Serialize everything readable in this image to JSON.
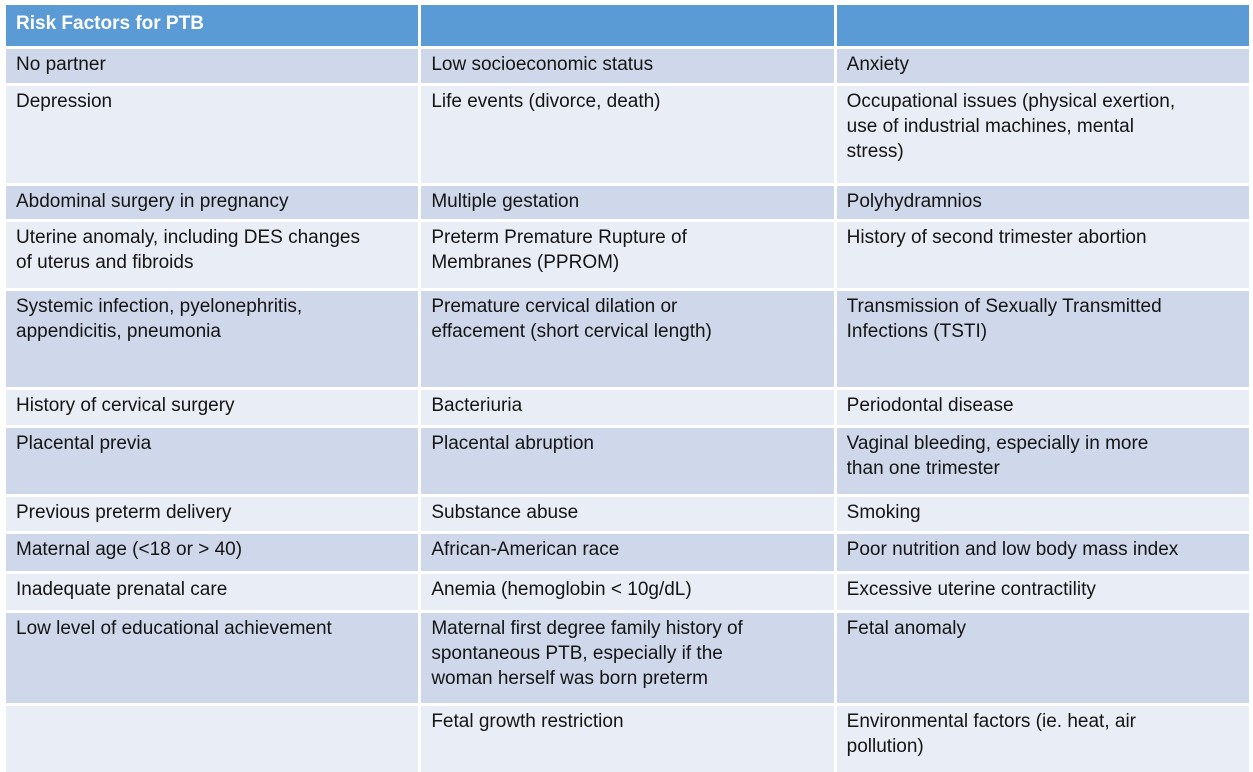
{
  "colors": {
    "header_bg": "#5B9BD5",
    "header_text": "#FFFFFF",
    "band_dark": "#CFD8EA",
    "band_light": "#E9EDF6",
    "border": "#FFFFFF",
    "body_text": "#141414"
  },
  "table": {
    "title": "Risk Factors for PTB",
    "header": [
      "Risk Factors for PTB",
      "",
      ""
    ],
    "rows": [
      [
        "No partner",
        "Low socioeconomic status",
        "Anxiety"
      ],
      [
        "Depression",
        "Life events (divorce, death)",
        "Occupational issues (physical exertion,\nuse of industrial machines, mental\nstress)"
      ],
      [
        "Abdominal surgery in pregnancy",
        "Multiple gestation",
        "Polyhydramnios"
      ],
      [
        "Uterine anomaly, including DES changes\nof uterus and fibroids",
        "Preterm Premature Rupture of\nMembranes (PPROM)",
        "History of second trimester abortion"
      ],
      [
        "Systemic infection, pyelonephritis,\nappendicitis, pneumonia",
        "Premature cervical dilation or\neffacement (short cervical length)",
        "Transmission of Sexually Transmitted\nInfections (TSTI)"
      ],
      [
        "History of cervical surgery",
        "Bacteriuria",
        "Periodontal disease"
      ],
      [
        "Placental previa",
        "Placental abruption",
        "Vaginal bleeding, especially in more\nthan one trimester"
      ],
      [
        "Previous preterm delivery",
        "Substance abuse",
        "Smoking"
      ],
      [
        "Maternal age (<18 or > 40)",
        "African-American race",
        "Poor nutrition and low body mass index"
      ],
      [
        "Inadequate prenatal care",
        "Anemia (hemoglobin < 10g/dL)",
        "Excessive uterine contractility"
      ],
      [
        "Low level of educational achievement",
        "Maternal first degree family history of\nspontaneous PTB, especially if the\nwoman herself was born preterm",
        "Fetal anomaly"
      ],
      [
        "",
        "Fetal growth restriction",
        "Environmental factors (ie. heat, air\npollution)"
      ]
    ]
  }
}
